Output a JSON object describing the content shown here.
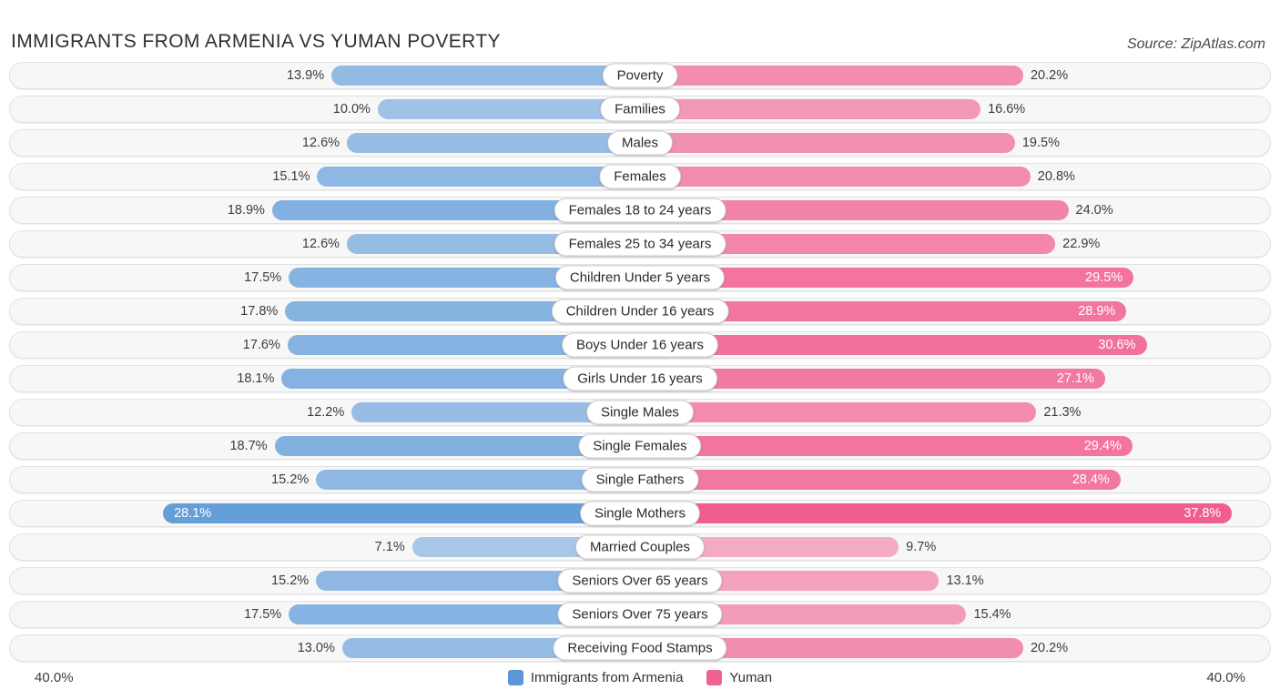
{
  "title": "IMMIGRANTS FROM ARMENIA VS YUMAN POVERTY",
  "source": "Source: ZipAtlas.com",
  "axis": {
    "left_max": "40.0%",
    "right_max": "40.0%"
  },
  "legend": [
    {
      "label": "Immigrants from Armenia",
      "color": "#5d96d8"
    },
    {
      "label": "Yuman",
      "color": "#ef6292"
    }
  ],
  "colors": {
    "blue_base_rgb": "61,135,210",
    "pink_base_rgb": "240,86,138",
    "track_bg": "#f7f7f7",
    "track_border": "#e2e2e2"
  },
  "chart_data": {
    "type": "bar",
    "orientation": "butterfly",
    "title": "IMMIGRANTS FROM ARMENIA VS YUMAN POVERTY",
    "axis_max_percent": 40.0,
    "inside_label_threshold_percent": 25.0,
    "categories": [
      "Poverty",
      "Families",
      "Males",
      "Females",
      "Females 18 to 24 years",
      "Females 25 to 34 years",
      "Children Under 5 years",
      "Children Under 16 years",
      "Boys Under 16 years",
      "Girls Under 16 years",
      "Single Males",
      "Single Females",
      "Single Fathers",
      "Single Mothers",
      "Married Couples",
      "Seniors Over 65 years",
      "Seniors Over 75 years",
      "Receiving Food Stamps"
    ],
    "series": [
      {
        "name": "Immigrants from Armenia",
        "side": "left",
        "values": [
          13.9,
          10.0,
          12.6,
          15.1,
          18.9,
          12.6,
          17.5,
          17.8,
          17.6,
          18.1,
          12.2,
          18.7,
          15.2,
          28.1,
          7.1,
          15.2,
          17.5,
          13.0
        ]
      },
      {
        "name": "Yuman",
        "side": "right",
        "values": [
          20.2,
          16.6,
          19.5,
          20.8,
          24.0,
          22.9,
          29.5,
          28.9,
          30.6,
          27.1,
          21.3,
          29.4,
          28.4,
          37.8,
          9.7,
          13.1,
          15.4,
          20.2
        ]
      }
    ]
  }
}
